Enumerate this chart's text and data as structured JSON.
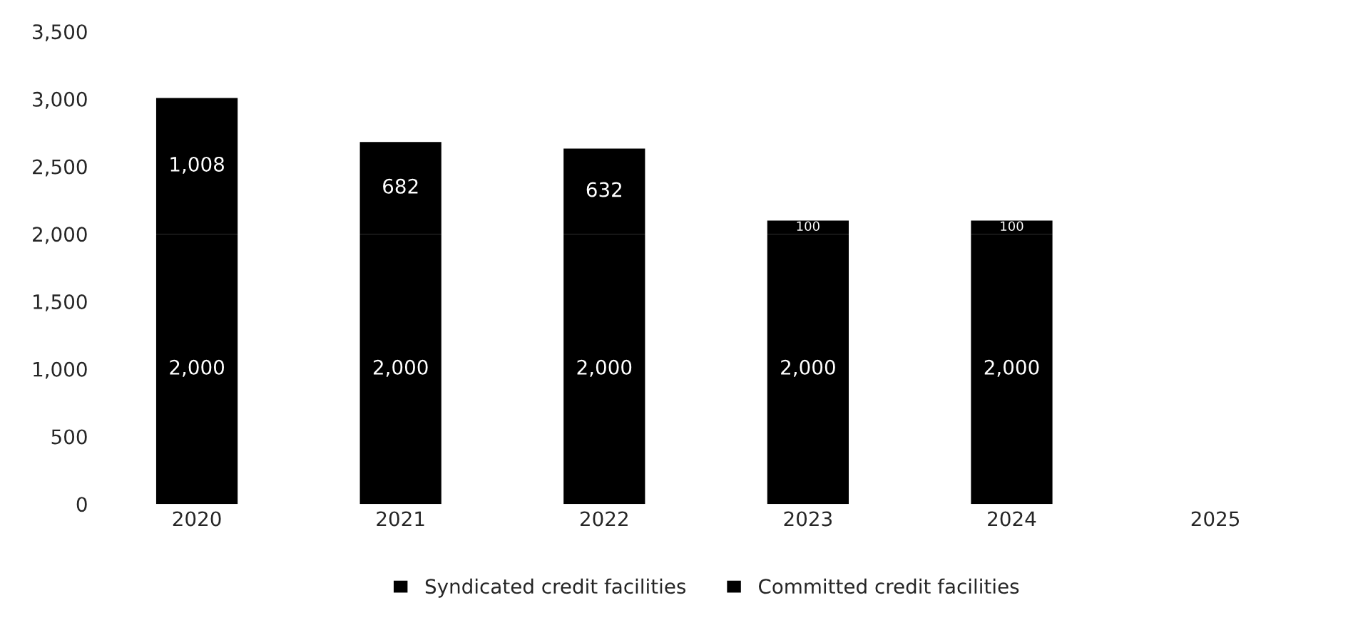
{
  "chart_data": {
    "type": "bar",
    "stacked": true,
    "categories": [
      "2020",
      "2021",
      "2022",
      "2023",
      "2024",
      "2025"
    ],
    "series": [
      {
        "name": "Syndicated credit facilities",
        "color": "#000000",
        "values": [
          2000,
          2000,
          2000,
          2000,
          2000,
          null
        ],
        "value_labels": [
          "2,000",
          "2,000",
          "2,000",
          "2,000",
          "2,000",
          null
        ]
      },
      {
        "name": "Committed credit facilities",
        "color": "#000000",
        "values": [
          1008,
          682,
          632,
          100,
          100,
          null
        ],
        "value_labels": [
          "1,008",
          "682",
          "632",
          "100",
          "100",
          null
        ]
      }
    ],
    "ylim": [
      0,
      3500
    ],
    "yticks": [
      0,
      500,
      {
        "value": 1000,
        "label": "1,000"
      },
      {
        "value": 1500,
        "label": "1,500"
      },
      {
        "value": 2000,
        "label": "2,000"
      },
      {
        "value": 2500,
        "label": "2,500"
      },
      {
        "value": 3000,
        "label": "3,000"
      },
      {
        "value": 3500,
        "label": "3,500"
      }
    ],
    "grid": false,
    "legend": "bottom"
  }
}
